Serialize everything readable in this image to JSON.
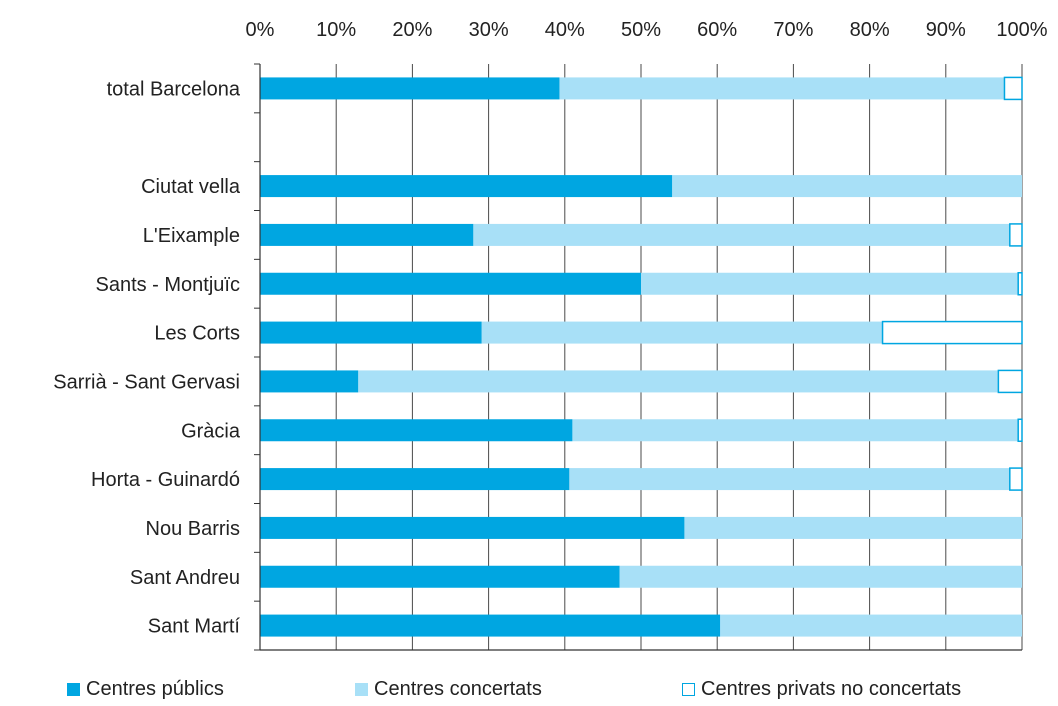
{
  "chart_data": {
    "type": "bar",
    "orientation": "horizontal",
    "stacked": true,
    "title": "",
    "xlabel": "",
    "ylabel": "",
    "xlim": [
      0,
      100
    ],
    "x_tick_labels": [
      "0%",
      "10%",
      "20%",
      "30%",
      "40%",
      "50%",
      "60%",
      "70%",
      "80%",
      "90%",
      "100%"
    ],
    "x_axis_position": "top",
    "grid": "vertical",
    "legend_position": "bottom",
    "categories": [
      "total Barcelona",
      "",
      "Ciutat vella",
      "L'Eixample",
      "Sants - Montjuïc",
      "Les Corts",
      "Sarrià - Sant Gervasi",
      "Gràcia",
      "Horta - Guinardó",
      "Nou Barris",
      "Sant Andreu",
      "Sant Martí"
    ],
    "series": [
      {
        "name": "Centres públics",
        "color": "#00a6e1",
        "fill": "solid",
        "values": [
          39.3,
          null,
          54.1,
          28.0,
          50.0,
          29.1,
          12.9,
          41.0,
          40.6,
          55.7,
          47.2,
          60.4
        ]
      },
      {
        "name": "Centres concertats",
        "color": "#a8e0f7",
        "fill": "solid",
        "values": [
          58.4,
          null,
          45.9,
          70.4,
          49.5,
          52.6,
          84.0,
          58.5,
          57.8,
          44.3,
          52.8,
          39.6
        ]
      },
      {
        "name": "Centres privats no concertats",
        "color": "#00a6e1",
        "fill": "outline",
        "values": [
          2.3,
          null,
          0.0,
          1.6,
          0.5,
          18.3,
          3.1,
          0.5,
          1.6,
          0.0,
          0.0,
          0.0
        ]
      }
    ]
  }
}
